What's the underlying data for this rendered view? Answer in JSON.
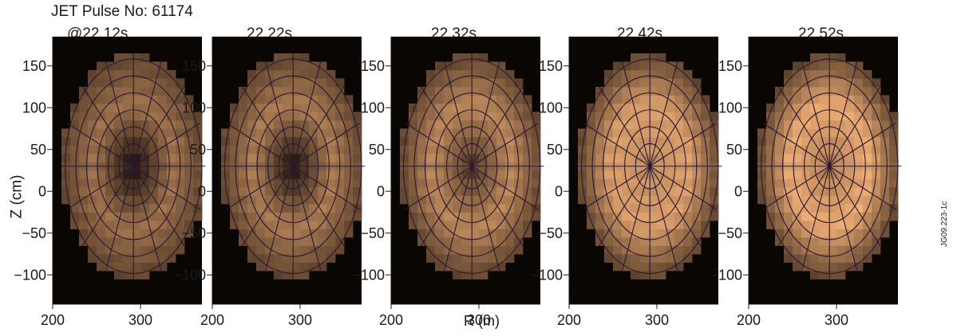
{
  "header": {
    "pulse_label": "JET Pulse No: 61174"
  },
  "figure_id": "JG09.223-1c",
  "chart_data": {
    "type": "heatmap",
    "xlabel": "R (m)",
    "ylabel": "Z (cm)",
    "xlim": [
      200,
      370
    ],
    "ylim": [
      -135,
      185
    ],
    "xticks": [
      200,
      300
    ],
    "yticks": [
      150,
      100,
      50,
      0,
      -50,
      -100
    ],
    "panels": [
      {
        "label": "@22.12s",
        "time": 22.12,
        "core_brightness": 0.05,
        "edge_brightness": 0.62
      },
      {
        "label": "22.22s",
        "time": 22.22,
        "core_brightness": 0.08,
        "edge_brightness": 0.68
      },
      {
        "label": "22.32s",
        "time": 22.32,
        "core_brightness": 0.3,
        "edge_brightness": 0.75
      },
      {
        "label": "22.42s",
        "time": 22.42,
        "core_brightness": 0.78,
        "edge_brightness": 0.88
      },
      {
        "label": "22.52s",
        "time": 22.52,
        "core_brightness": 0.7,
        "edge_brightness": 0.95
      }
    ]
  }
}
